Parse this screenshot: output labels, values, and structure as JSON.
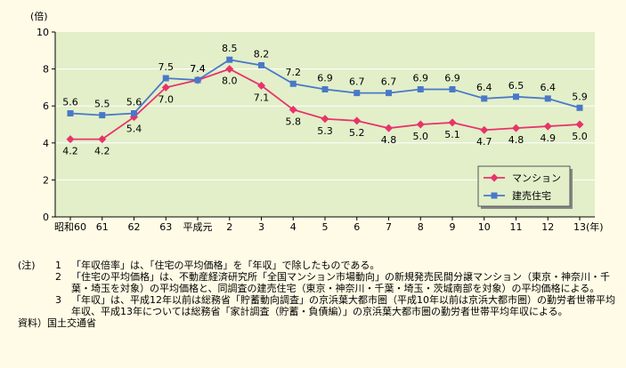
{
  "chart_data": {
    "type": "line",
    "ylabel": "(倍)",
    "year_unit": "(年)",
    "categories": [
      "昭和60",
      "61",
      "62",
      "63",
      "平成元",
      "2",
      "3",
      "4",
      "5",
      "6",
      "7",
      "8",
      "9",
      "10",
      "11",
      "12",
      "13"
    ],
    "ylim": [
      0,
      10
    ],
    "yticks": [
      "0",
      "2",
      "4",
      "6",
      "8",
      "10"
    ],
    "series": [
      {
        "name": "マンション",
        "color": "#e8336a",
        "marker": "diamond",
        "values": [
          4.2,
          4.2,
          5.4,
          7.0,
          7.4,
          8.0,
          7.1,
          5.8,
          5.3,
          5.2,
          4.8,
          5.0,
          5.1,
          4.7,
          4.8,
          4.9,
          5.0
        ],
        "labels": [
          "4.2",
          "4.2",
          "5.4",
          "7.0",
          "7.4",
          "8.0",
          "7.1",
          "5.8",
          "5.3",
          "5.2",
          "4.8",
          "5.0",
          "5.1",
          "4.7",
          "4.8",
          "4.9",
          "5.0"
        ]
      },
      {
        "name": "建売住宅",
        "color": "#4a78c8",
        "marker": "square",
        "values": [
          5.6,
          5.5,
          5.6,
          7.5,
          7.4,
          8.5,
          8.2,
          7.2,
          6.9,
          6.7,
          6.7,
          6.9,
          6.9,
          6.4,
          6.5,
          6.4,
          5.9
        ],
        "labels": [
          "5.6",
          "5.5",
          "5.6",
          "7.5",
          "7.4",
          "8.5",
          "8.2",
          "7.2",
          "6.9",
          "6.7",
          "6.7",
          "6.9",
          "6.9",
          "6.4",
          "6.5",
          "6.4",
          "5.9"
        ]
      }
    ],
    "grid": true,
    "legend_position": "bottom-right",
    "colors": {
      "plot_bg": "#e2efc9",
      "legend_bg": "#e2efc9",
      "grid": "#ffffff"
    }
  },
  "notes": {
    "marker": "(注)",
    "items": [
      {
        "num": "1",
        "text": "「年収倍率」は、「住宅の平均価格」を「年収」で除したものである。"
      },
      {
        "num": "2",
        "text": "「住宅の平均価格」は、不動産経済研究所「全国マンション市場動向」の新規発売民間分譲マンション（東京・神奈川・千葉・埼玉を対象）の平均価格と、同調査の建売住宅（東京・神奈川・千葉・埼玉・茨城南部を対象）の平均価格による。"
      },
      {
        "num": "3",
        "text": "「年収」は、平成12年以前は総務省「貯蓄動向調査」の京浜葉大都市圏（平成10年以前は京浜大都市圏）の勤労者世帯平均年収、平成13年については総務省「家計調査（貯蓄・負債編）」の京浜葉大都市圏の勤労者世帯平均年収による。"
      }
    ],
    "source": "資料）国土交通省"
  }
}
